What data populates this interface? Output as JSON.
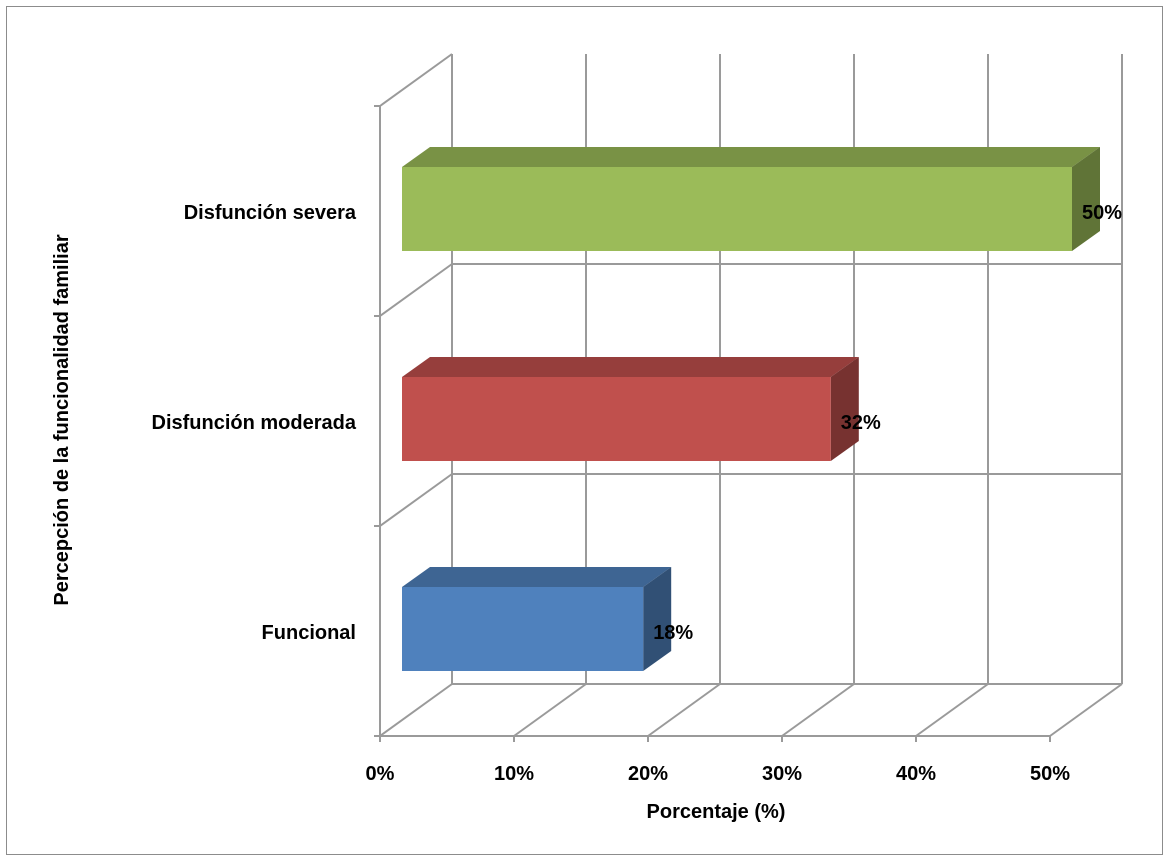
{
  "chart_data": {
    "type": "bar",
    "orientation": "horizontal",
    "three_d": true,
    "categories": [
      "Funcional",
      "Disfunción moderada",
      "Disfunción severa"
    ],
    "values": [
      18,
      32,
      50
    ],
    "data_labels": [
      "18%",
      "32%",
      "50%"
    ],
    "colors": [
      "#4F81BD",
      "#C0504D",
      "#9BBB59"
    ],
    "xlabel": "Porcentaje (%)",
    "ylabel": "Percepción de la funcionalidad familiar",
    "xlim": [
      0,
      50
    ],
    "xticks": [
      0,
      10,
      20,
      30,
      40,
      50
    ],
    "xtick_labels": [
      "0%",
      "10%",
      "20%",
      "30%",
      "40%",
      "50%"
    ],
    "grid": true,
    "legend": "none"
  }
}
